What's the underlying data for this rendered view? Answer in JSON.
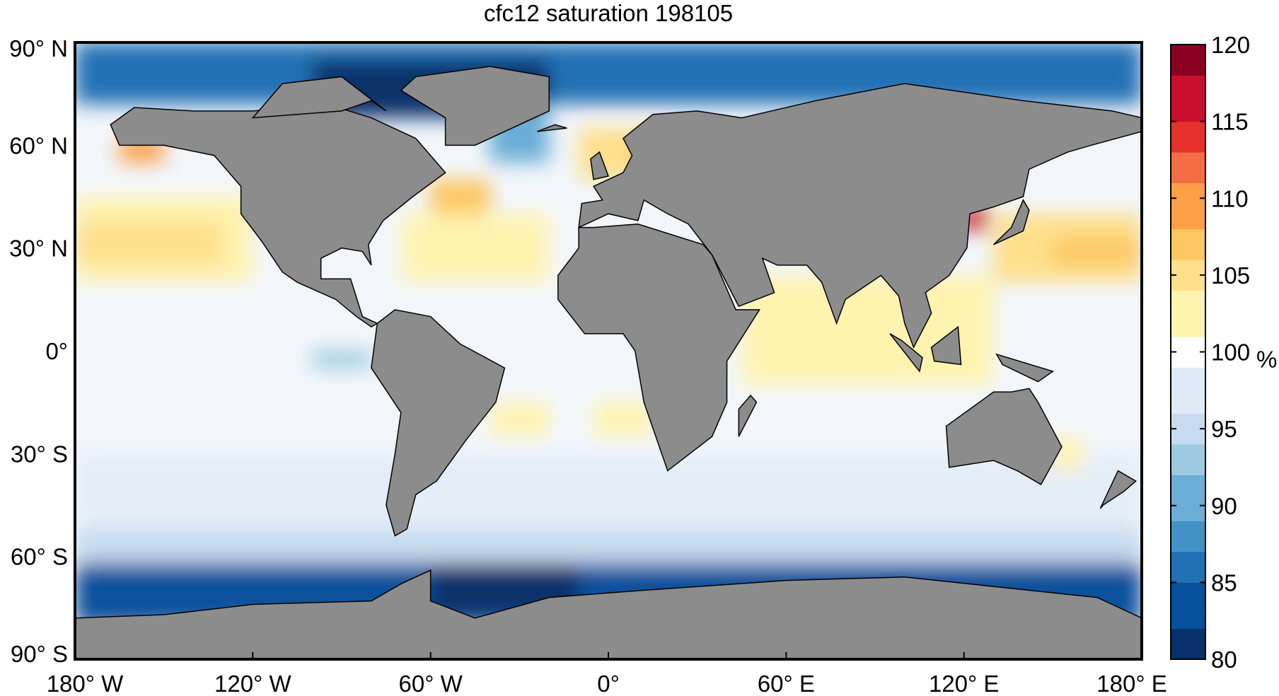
{
  "title": "cfc12 saturation 198105",
  "chart_data": {
    "type": "heatmap",
    "title": "cfc12 saturation 198105",
    "projection": "equirectangular",
    "xlim": [
      -180,
      180
    ],
    "ylim": [
      -90,
      90
    ],
    "x_ticks": [
      {
        "value": -180,
        "label": "180° W"
      },
      {
        "value": -120,
        "label": "120° W"
      },
      {
        "value": -60,
        "label": "60° W"
      },
      {
        "value": 0,
        "label": "0°"
      },
      {
        "value": 60,
        "label": "60° E"
      },
      {
        "value": 120,
        "label": "120° E"
      },
      {
        "value": 180,
        "label": "180° E"
      }
    ],
    "y_ticks": [
      {
        "value": 90,
        "label": "90° N"
      },
      {
        "value": 60,
        "label": "60° N"
      },
      {
        "value": 30,
        "label": "30° N"
      },
      {
        "value": 0,
        "label": "0°"
      },
      {
        "value": -30,
        "label": "30° S"
      },
      {
        "value": -60,
        "label": "60° S"
      },
      {
        "value": -90,
        "label": "90° S"
      }
    ],
    "colorbar": {
      "range": [
        80,
        120
      ],
      "ticks": [
        "80",
        "85",
        "90",
        "95",
        "100",
        "105",
        "110",
        "115",
        "120"
      ],
      "unit": "%",
      "colormap": "diverging blue-white-red",
      "colors": [
        "#08306b",
        "#08519c",
        "#2171b5",
        "#4292c6",
        "#6baed6",
        "#9ecae1",
        "#c6dbef",
        "#deebf7",
        "#ffffff",
        "#fff3b0",
        "#fee08b",
        "#fdc762",
        "#fd9f45",
        "#f46d43",
        "#e6302a",
        "#c8102e",
        "#8b0020"
      ]
    },
    "land_color": "#8c8c8c"
  }
}
